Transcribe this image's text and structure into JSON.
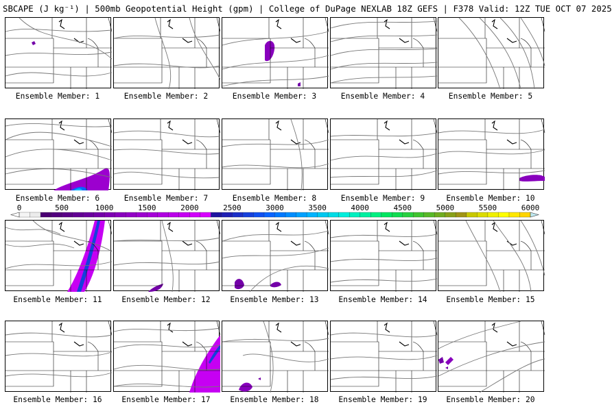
{
  "title": "SBCAPE (J kg⁻¹) | 500mb Geopotential Height (gpm) | College of DuPage NEXLAB 18Z GEFS | F378 Valid: 12Z TUE OCT 07 2025",
  "member_label_prefix": "Ensemble Member:",
  "members": [
    {
      "number": "1"
    },
    {
      "number": "2"
    },
    {
      "number": "3"
    },
    {
      "number": "4"
    },
    {
      "number": "5"
    },
    {
      "number": "6"
    },
    {
      "number": "7"
    },
    {
      "number": "8"
    },
    {
      "number": "9"
    },
    {
      "number": "10"
    },
    {
      "number": "11"
    },
    {
      "number": "12"
    },
    {
      "number": "13"
    },
    {
      "number": "14"
    },
    {
      "number": "15"
    },
    {
      "number": "16"
    },
    {
      "number": "17"
    },
    {
      "number": "18"
    },
    {
      "number": "19"
    },
    {
      "number": "20"
    }
  ],
  "colorbar": {
    "tick_labels": [
      "0",
      "500",
      "1000",
      "1500",
      "2000",
      "2500",
      "3000",
      "3500",
      "4000",
      "4500",
      "5000",
      "5500",
      "6000"
    ],
    "min": 0,
    "max": 6000,
    "step": 125,
    "colors": [
      "#f5f5f5",
      "#ececec",
      "#4b0073",
      "#52007e",
      "#5a0088",
      "#610093",
      "#69009d",
      "#7300a8",
      "#7d00b2",
      "#8800bd",
      "#9200c6",
      "#9c00cf",
      "#a600d8",
      "#b000e1",
      "#bb00ea",
      "#c600f3",
      "#d100fb",
      "#d800ff",
      "#1e14a0",
      "#2020b4",
      "#1c30c8",
      "#1640dc",
      "#1050f0",
      "#0a64ff",
      "#0078ff",
      "#008cff",
      "#00a0ff",
      "#00b4ff",
      "#00c8f0",
      "#00dce6",
      "#00eedc",
      "#00f0c0",
      "#00f0a0",
      "#00f080",
      "#00e660",
      "#10dc50",
      "#28d040",
      "#40c430",
      "#58b828",
      "#70ac20",
      "#88a018",
      "#a09414",
      "#c8c800",
      "#dcdc00",
      "#f0f000",
      "#ffff00",
      "#ffe800",
      "#ffd400",
      "#ffc000",
      "#ffac00",
      "#ff9800",
      "#ff8400",
      "#f07000",
      "#e05c00",
      "#d04800",
      "#c03400",
      "#b02000",
      "#a01000",
      "#800000",
      "#900000",
      "#a00000",
      "#b00000",
      "#c00000",
      "#d00000",
      "#e00000",
      "#f00000",
      "#ff0000",
      "#ff2020",
      "#ff4040",
      "#7a7a7a",
      "#838383",
      "#8c8c8c",
      "#959595",
      "#9e9e9e",
      "#a7a7a7",
      "#b0b0b0",
      "#b9b9b9",
      "#c2c2c2",
      "#cbcbcb",
      "#a0b8c0",
      "#a8c4cc",
      "#b0d0d8",
      "#b8dce4",
      "#c0e8f0"
    ]
  }
}
